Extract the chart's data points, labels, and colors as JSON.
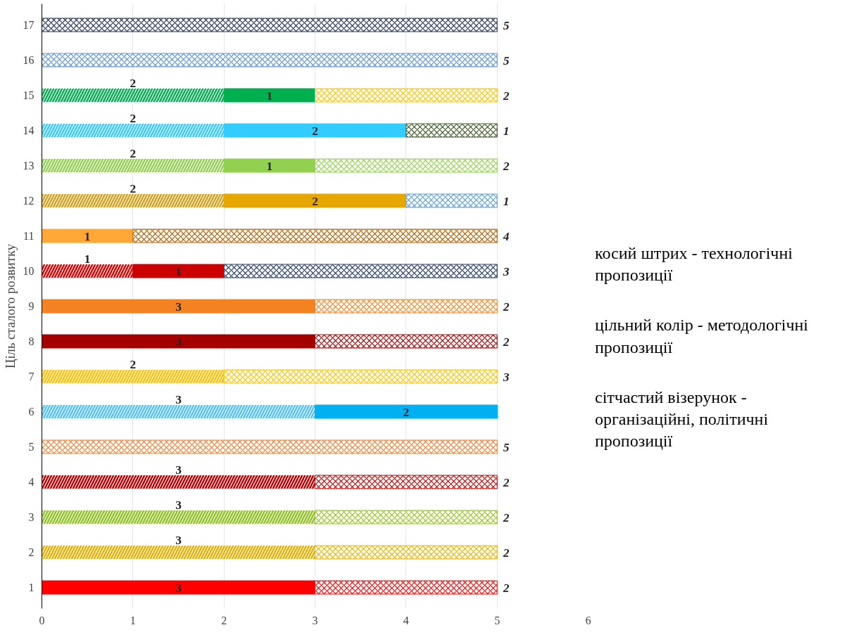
{
  "chart_data": {
    "type": "bar",
    "orientation": "horizontal",
    "stacked": true,
    "ylabel": "Ціль сталого розвитку",
    "categories": [
      "17",
      "16",
      "15",
      "14",
      "13",
      "12",
      "11",
      "10",
      "9",
      "8",
      "7",
      "6",
      "5",
      "4",
      "3",
      "2",
      "1"
    ],
    "xlim": [
      0,
      6
    ],
    "xticks": [
      0,
      1,
      2,
      3,
      4,
      5,
      6
    ],
    "grid": "x",
    "series": [
      {
        "values": [
          0,
          0,
          2,
          2,
          2,
          2,
          0,
          1,
          0,
          0,
          2,
          3,
          0,
          3,
          3,
          3,
          0
        ],
        "value_labels": [
          null,
          null,
          "2",
          "2",
          "2",
          "2",
          null,
          "1",
          null,
          null,
          "2",
          "3",
          null,
          "3",
          "3",
          "3",
          null
        ],
        "colors": [
          "#1f2f4f",
          "#5b8fd6",
          "#00b050",
          "#33ccff",
          "#92d050",
          "#d4a017",
          "#ffa838",
          "#e00000",
          "#f58220",
          "#a50000",
          "#ffc000",
          "#4fc3f7",
          "#f47c30",
          "#c00000",
          "#8fc31f",
          "#e6b000",
          "#ff0000"
        ]
      },
      {
        "values": [
          0,
          0,
          1,
          2,
          1,
          2,
          1,
          1,
          3,
          3,
          0,
          2,
          0,
          0,
          0,
          0,
          3
        ],
        "value_labels": [
          null,
          null,
          "1",
          "2",
          "1",
          "2",
          "1",
          "1",
          "3",
          "3",
          null,
          "2",
          null,
          null,
          null,
          null,
          "3"
        ],
        "colors": [
          "#1f2f4f",
          "#5b8fd6",
          "#00b050",
          "#33ccff",
          "#92d050",
          "#e6a800",
          "#ffa838",
          "#cc0000",
          "#f58220",
          "#a50000",
          "#ffc000",
          "#00b0f0",
          "#f47c30",
          "#c00000",
          "#8fc31f",
          "#e6b000",
          "#ff0000"
        ]
      },
      {
        "values": [
          5,
          5,
          2,
          1,
          2,
          1,
          4,
          3,
          2,
          2,
          3,
          0,
          5,
          2,
          2,
          2,
          2
        ],
        "value_labels": [
          "5",
          "5",
          "2",
          "1",
          "2",
          "1",
          "4",
          "3",
          "2",
          "2",
          "3",
          null,
          "5",
          "2",
          "2",
          "2",
          "2"
        ],
        "colors": [
          "#1f2f4f",
          "#5b8fd6",
          "#ffc000",
          "#385723",
          "#92d050",
          "#5b9bd5",
          "#b05a00",
          "#1f3864",
          "#f58220",
          "#a50000",
          "#ffc000",
          "#00b0f0",
          "#f47c30",
          "#c00000",
          "#8fc31f",
          "#e6b000",
          "#ff0000"
        ]
      }
    ],
    "annotations": [
      "косий штрих - технологічні пропозиції",
      "цільний колір - методологічні пропозиції",
      "сітчастий візерунок - організаційні, політичні пропозиції"
    ]
  }
}
